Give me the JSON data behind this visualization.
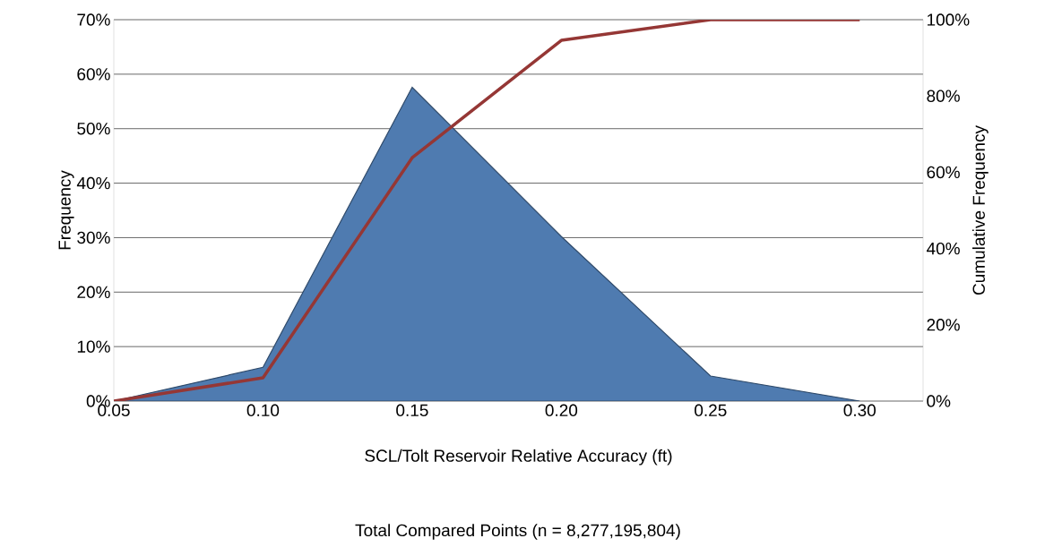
{
  "chart_data": {
    "type": "area",
    "categories": [
      "0.05",
      "0.10",
      "0.15",
      "0.20",
      "0.25",
      "0.30"
    ],
    "xlabel": "SCL/Tolt Reservoir Relative Accuracy (ft)",
    "ylabel": "Frequency",
    "y2label": "Cumulative Frequency",
    "annotations": [
      "Total Compared Points (n = 8,277,195,804)"
    ],
    "series": [
      {
        "color": "#4f7bb0",
        "values": [
          0,
          6.2,
          57.6,
          30.2,
          4.6,
          0
        ]
      },
      {
        "type": "line",
        "axis": "y2",
        "color": "#953735",
        "values": [
          0,
          6.1,
          63.8,
          94.6,
          100,
          100
        ]
      }
    ],
    "ylim": [
      0,
      70
    ],
    "yticks": [
      {
        "value": 0,
        "label": "0%"
      },
      {
        "value": 10,
        "label": "10%"
      },
      {
        "value": 20,
        "label": "20%"
      },
      {
        "value": 30,
        "label": "30%"
      },
      {
        "value": 40,
        "label": "40%"
      },
      {
        "value": 50,
        "label": "50%"
      },
      {
        "value": 60,
        "label": "60%"
      },
      {
        "value": 70,
        "label": "70%"
      }
    ],
    "y2lim": [
      0,
      100
    ],
    "y2ticks": [
      {
        "value": 0,
        "label": "0%"
      },
      {
        "value": 20,
        "label": "20%"
      },
      {
        "value": 40,
        "label": "40%"
      },
      {
        "value": 60,
        "label": "60%"
      },
      {
        "value": 80,
        "label": "80%"
      },
      {
        "value": 100,
        "label": "100%"
      }
    ],
    "grid": "y"
  }
}
